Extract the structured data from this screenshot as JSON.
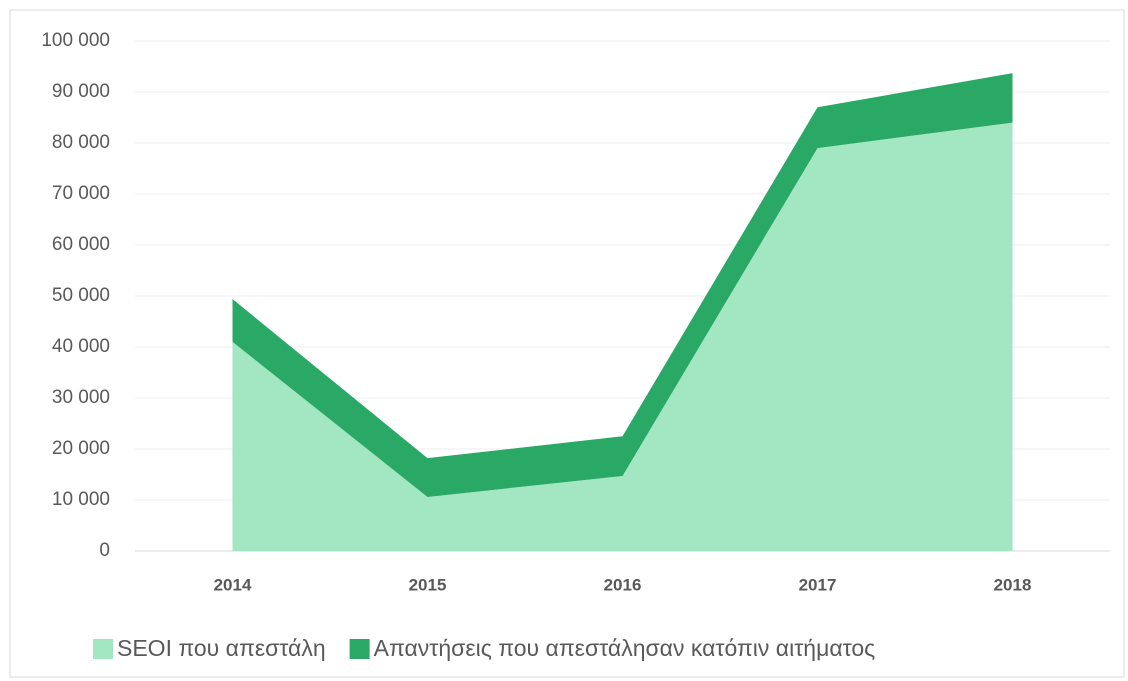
{
  "chart_data": {
    "type": "stacked_area",
    "categories": [
      "2014",
      "2015",
      "2016",
      "2017",
      "2018"
    ],
    "series": [
      {
        "name": "SEOI που απεστάλη",
        "color": "#a3e6c2",
        "values": [
          41000,
          10600,
          14700,
          79000,
          84000
        ]
      },
      {
        "name": "Απαντήσεις που απεστάλησαν κατόπιν αιτήματος",
        "color": "#2aa866",
        "values": [
          8400,
          7600,
          7800,
          8000,
          9700
        ]
      }
    ],
    "ylim": [
      0,
      100000
    ],
    "yticks": [
      0,
      {
        "value": 10000,
        "label": "10 000"
      },
      {
        "value": 20000,
        "label": "20 000"
      },
      {
        "value": 30000,
        "label": "30 000"
      },
      {
        "value": 40000,
        "label": "40 000"
      },
      {
        "value": 50000,
        "label": "50 000"
      },
      {
        "value": 60000,
        "label": "60 000"
      },
      {
        "value": 70000,
        "label": "70 000"
      },
      {
        "value": 80000,
        "label": "80 000"
      },
      {
        "value": 90000,
        "label": "90 000"
      },
      {
        "value": 100000,
        "label": "100 000"
      }
    ],
    "grid": true,
    "legend": "bottom"
  }
}
